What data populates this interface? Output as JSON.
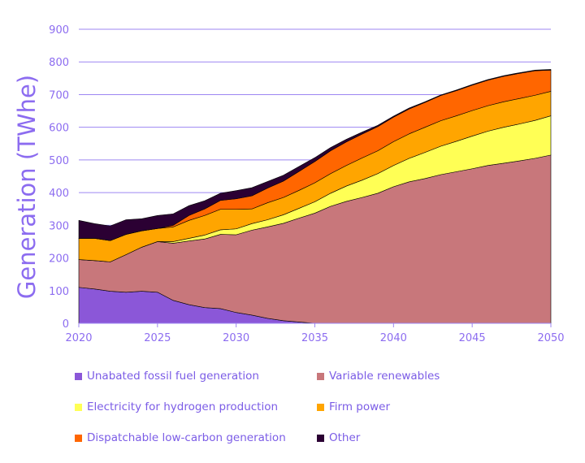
{
  "chart_data": {
    "type": "area",
    "stacked": true,
    "title": "",
    "xlabel": "",
    "ylabel": "Generation  (TWhe)",
    "xlim": [
      2020,
      2050
    ],
    "ylim": [
      0,
      900
    ],
    "xticks": [
      "2020",
      "2025",
      "2030",
      "2035",
      "2040",
      "2045",
      "2050"
    ],
    "yticks": [
      "0",
      "100",
      "200",
      "300",
      "400",
      "500",
      "600",
      "700",
      "800",
      "900"
    ],
    "grid": true,
    "legend_position": "bottom",
    "x": [
      2020,
      2021,
      2022,
      2023,
      2024,
      2025,
      2026,
      2027,
      2028,
      2029,
      2030,
      2031,
      2032,
      2033,
      2034,
      2035,
      2036,
      2037,
      2038,
      2039,
      2040,
      2041,
      2042,
      2043,
      2044,
      2045,
      2046,
      2047,
      2048,
      2049,
      2050
    ],
    "series": [
      {
        "name": "Unabated fossil fuel generation",
        "color": "#8B57D8",
        "values": [
          110,
          105,
          98,
          95,
          98,
          95,
          70,
          57,
          48,
          45,
          33,
          25,
          15,
          8,
          4,
          0,
          0,
          0,
          0,
          0,
          0,
          0,
          0,
          0,
          0,
          0,
          0,
          0,
          0,
          0,
          0
        ]
      },
      {
        "name": "Variable renewables",
        "color": "#C8777B",
        "values": [
          85,
          87,
          90,
          115,
          135,
          155,
          175,
          195,
          210,
          227,
          238,
          260,
          280,
          298,
          318,
          337,
          358,
          373,
          385,
          398,
          418,
          433,
          443,
          455,
          464,
          473,
          483,
          490,
          497,
          505,
          515
        ]
      },
      {
        "name": "Electricity for hydrogen production",
        "color": "#FFFF55",
        "values": [
          0,
          0,
          0,
          0,
          0,
          0,
          5,
          8,
          12,
          14,
          18,
          20,
          22,
          26,
          30,
          35,
          40,
          47,
          53,
          60,
          65,
          72,
          80,
          87,
          93,
          100,
          105,
          110,
          113,
          116,
          120
        ]
      },
      {
        "name": "Firm power",
        "color": "#FFA500",
        "values": [
          65,
          68,
          65,
          62,
          50,
          40,
          45,
          55,
          60,
          63,
          60,
          45,
          52,
          53,
          55,
          58,
          60,
          63,
          68,
          70,
          73,
          75,
          77,
          78,
          78,
          78,
          78,
          78,
          78,
          77,
          75
        ]
      },
      {
        "name": "Dispatchable low-carbon generation",
        "color": "#FF6600",
        "values": [
          0,
          0,
          0,
          0,
          0,
          0,
          5,
          15,
          20,
          27,
          32,
          40,
          45,
          50,
          58,
          65,
          70,
          72,
          73,
          74,
          75,
          76,
          76,
          77,
          77,
          78,
          78,
          78,
          77,
          75,
          65
        ]
      },
      {
        "name": "Other",
        "color": "#2B0033",
        "values": [
          55,
          45,
          45,
          45,
          37,
          40,
          35,
          30,
          25,
          22,
          25,
          25,
          20,
          18,
          15,
          12,
          10,
          8,
          6,
          4,
          3,
          3,
          2,
          2,
          2,
          2,
          2,
          2,
          2,
          2,
          2
        ]
      }
    ]
  }
}
